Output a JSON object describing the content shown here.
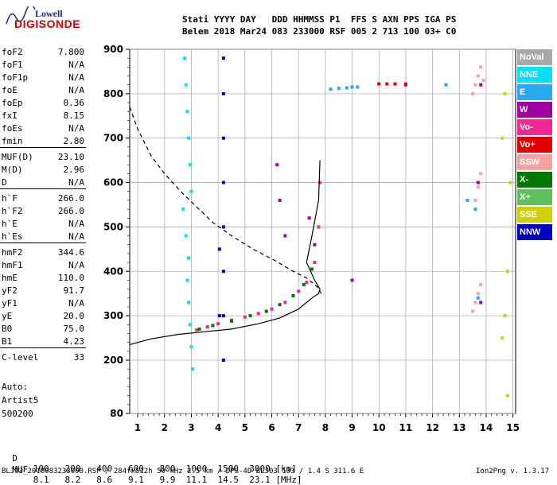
{
  "logo": {
    "line1": "Lowell",
    "line2": "DIGISONDE"
  },
  "header": {
    "row1": "Stati YYYY DAY   DDD HHMMSS P1  FFS S AXN PPS IGA PS",
    "row2": "Belem 2018 Mar24 083 233000 RSF 005 2 713 100 03+ C0"
  },
  "params": [
    {
      "k": "foF2",
      "v": "7.800"
    },
    {
      "k": "foF1",
      "v": "N/A"
    },
    {
      "k": "foF1p",
      "v": "N/A"
    },
    {
      "k": "foE",
      "v": "N/A"
    },
    {
      "k": "foEp",
      "v": "0.36"
    },
    {
      "k": "fxI",
      "v": "8.15"
    },
    {
      "k": "foEs",
      "v": "N/A"
    },
    {
      "k": "fmin",
      "v": "2.80"
    },
    {
      "k": "MUF(D)",
      "v": "23.10"
    },
    {
      "k": "M(D)",
      "v": "2.96"
    },
    {
      "k": "D",
      "v": "N/A"
    },
    {
      "k": "h`F",
      "v": "266.0"
    },
    {
      "k": "h`F2",
      "v": "266.0"
    },
    {
      "k": "h`E",
      "v": "N/A"
    },
    {
      "k": "h`Es",
      "v": "N/A"
    },
    {
      "k": "hmF2",
      "v": "344.6"
    },
    {
      "k": "hmF1",
      "v": "N/A"
    },
    {
      "k": "hmE",
      "v": "110.0"
    },
    {
      "k": "yF2",
      "v": "91.7"
    },
    {
      "k": "yF1",
      "v": "N/A"
    },
    {
      "k": "yE",
      "v": "20.0"
    },
    {
      "k": "B0",
      "v": "75.0"
    },
    {
      "k": "B1",
      "v": "4.23"
    },
    {
      "k": "C-level",
      "v": "33"
    }
  ],
  "auto": {
    "line1": "Auto:",
    "line2": "Artist5",
    "line3": "500200"
  },
  "legend": [
    {
      "label": "NoVal",
      "color": "#a8a8a8"
    },
    {
      "label": "NNE",
      "color": "#00e0f0"
    },
    {
      "label": "E",
      "color": "#2aa8f0"
    },
    {
      "label": "W",
      "color": "#a000a0"
    },
    {
      "label": "Vo-",
      "color": "#f02890"
    },
    {
      "label": "Vo+",
      "color": "#e00000"
    },
    {
      "label": "SSW",
      "color": "#f4a4a0"
    },
    {
      "label": "X-",
      "color": "#007800"
    },
    {
      "label": "X+",
      "color": "#60c060"
    },
    {
      "label": "SSE",
      "color": "#d0d000"
    },
    {
      "label": "NNW",
      "color": "#0000c0"
    }
  ],
  "footer": {
    "d_label": "D",
    "d_values": [
      "100",
      "200",
      "400",
      "600",
      "800",
      "1000",
      "1500",
      "3000"
    ],
    "d_unit": "[km]",
    "muf_label": "MUF",
    "muf_values": [
      "8.1",
      "8.2",
      "8.6",
      "9.1",
      "9.9",
      "11.1",
      "14.5",
      "23.1"
    ],
    "muf_unit": "[MHz]",
    "file_info": "BLJ03_2018083233000.RSF / 284fx512h 50 kHz 2.5 km / DPS-4D BLJ03 103 / 1.4 S 311.6 E",
    "version": "Ion2Png v. 1.3.17"
  },
  "chart_data": {
    "type": "scatter",
    "xlim": [
      0.7,
      15.1
    ],
    "ylim": [
      80,
      900
    ],
    "xticks": [
      "1",
      "2",
      "3",
      "4",
      "5",
      "6",
      "7",
      "8",
      "9",
      "10",
      "11",
      "12",
      "13",
      "14",
      "15"
    ],
    "yticks": [
      "80",
      "200",
      "300",
      "400",
      "500",
      "600",
      "700",
      "800",
      "900"
    ],
    "grid": true,
    "legend_position": "right",
    "series": [
      {
        "color": "#00e0f0",
        "x": [
          2.75,
          2.8,
          2.85,
          2.9,
          2.95,
          3.0,
          2.7,
          2.8,
          2.9,
          2.85,
          2.9,
          2.95,
          3.0,
          3.05
        ],
        "y": [
          880,
          820,
          760,
          700,
          640,
          580,
          540,
          480,
          430,
          380,
          330,
          280,
          230,
          180
        ]
      },
      {
        "color": "#0000c0",
        "x": [
          4.2,
          4.2,
          4.2,
          4.2,
          4.2,
          4.2,
          4.2,
          4.2,
          4.05,
          4.05
        ],
        "y": [
          880,
          800,
          700,
          600,
          500,
          400,
          300,
          200,
          450,
          300
        ]
      },
      {
        "color": "#f02890",
        "x": [
          3.2,
          3.6,
          4.0,
          4.5,
          5.0,
          5.5,
          6.0,
          6.5,
          7.0,
          7.3,
          7.6,
          7.75,
          7.8
        ],
        "y": [
          268,
          275,
          282,
          290,
          297,
          305,
          315,
          330,
          355,
          375,
          420,
          500,
          600
        ]
      },
      {
        "color": "#007800",
        "x": [
          3.3,
          3.8,
          4.5,
          5.2,
          5.8,
          6.3,
          6.8,
          7.2,
          7.5
        ],
        "y": [
          270,
          278,
          288,
          300,
          310,
          325,
          345,
          370,
          405
        ]
      },
      {
        "color": "#2aa8f0",
        "x": [
          8.2,
          8.5,
          8.8,
          9.0,
          9.2,
          12.5,
          13.3,
          13.6,
          13.7
        ],
        "y": [
          810,
          812,
          813,
          815,
          815,
          820,
          560,
          540,
          340
        ]
      },
      {
        "color": "#f4a4a0",
        "x": [
          13.5,
          13.6,
          13.7,
          13.8,
          13.9,
          13.6,
          13.7,
          13.8,
          13.5,
          13.6,
          13.7,
          13.8
        ],
        "y": [
          800,
          820,
          840,
          860,
          830,
          560,
          590,
          620,
          310,
          330,
          350,
          370
        ]
      },
      {
        "color": "#a000a0",
        "x": [
          6.2,
          6.3,
          6.5,
          7.4,
          13.8,
          13.7,
          13.8,
          7.6,
          9.0,
          11.0
        ],
        "y": [
          640,
          560,
          480,
          520,
          820,
          600,
          330,
          460,
          380,
          820
        ]
      },
      {
        "color": "#d0d000",
        "x": [
          14.6,
          14.7,
          14.8,
          14.9,
          14.6,
          14.7,
          14.8
        ],
        "y": [
          250,
          300,
          400,
          600,
          700,
          800,
          120
        ]
      },
      {
        "color": "#e00000",
        "x": [
          10.0,
          10.3,
          10.6,
          11.0
        ],
        "y": [
          822,
          822,
          822,
          822
        ]
      }
    ],
    "profile_solid": {
      "x": [
        0.7,
        1.5,
        2.5,
        3.5,
        4.5,
        5.5,
        6.3,
        7.0,
        7.5,
        7.75,
        7.8,
        7.6,
        7.3,
        7.5,
        7.75,
        7.8
      ],
      "y": [
        235,
        248,
        258,
        264,
        270,
        282,
        295,
        315,
        340,
        350,
        360,
        380,
        420,
        480,
        560,
        650
      ]
    },
    "profile_dashed": {
      "x": [
        0.7,
        1.0,
        1.5,
        2.0,
        2.6,
        3.2,
        3.8,
        4.5,
        5.3,
        6.1,
        6.8,
        7.3,
        7.7,
        7.85
      ],
      "y": [
        770,
        720,
        660,
        620,
        580,
        545,
        510,
        480,
        450,
        425,
        400,
        385,
        365,
        350
      ]
    }
  }
}
